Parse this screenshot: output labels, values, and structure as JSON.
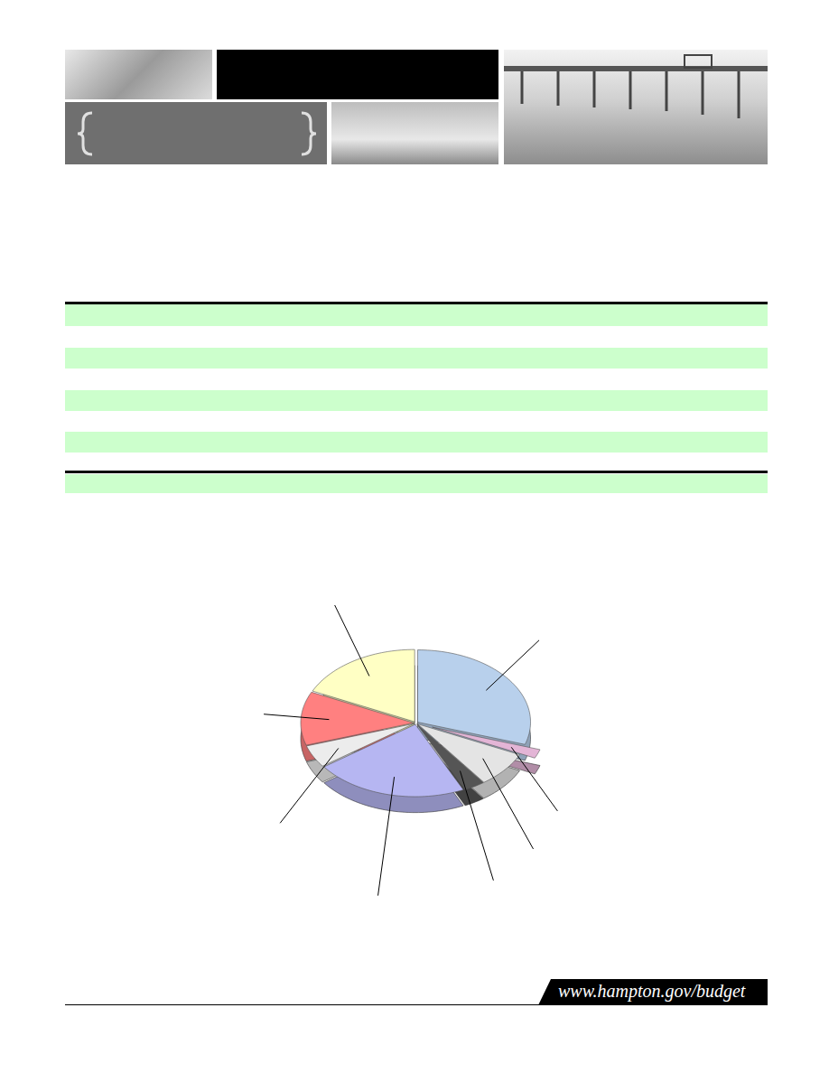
{
  "footer": {
    "url": "www.hampton.gov/budget"
  },
  "chart_data": {
    "type": "pie",
    "values": [
      30,
      2,
      8,
      3,
      22,
      5,
      12,
      18
    ],
    "colors": [
      "#b8d0ec",
      "#e3b5d6",
      "#e4e4e4",
      "#555555",
      "#b6b6f2",
      "#ececec",
      "#ff8080",
      "#ffffc4"
    ],
    "tick_labels": false
  }
}
